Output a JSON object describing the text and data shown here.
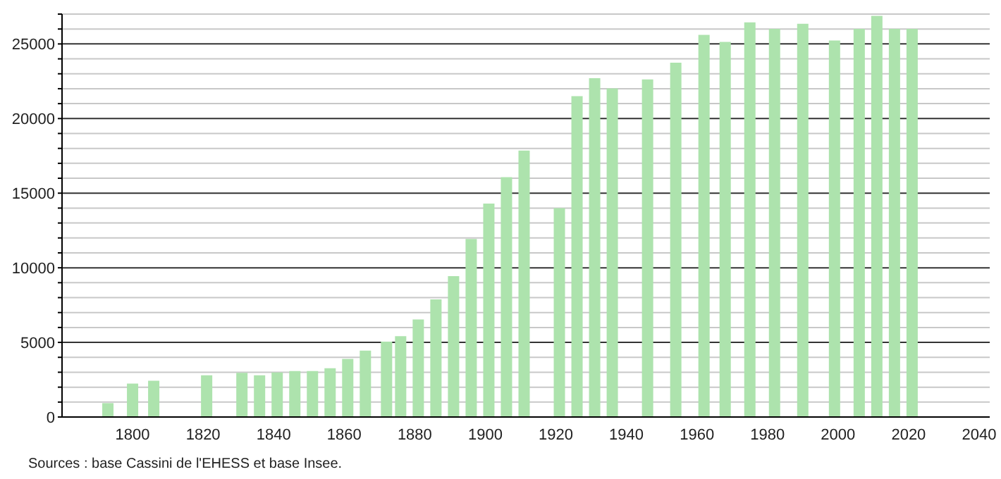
{
  "chart_data": {
    "type": "bar",
    "x": [
      1793,
      1800,
      1806,
      1821,
      1831,
      1836,
      1841,
      1846,
      1851,
      1856,
      1861,
      1866,
      1872,
      1876,
      1881,
      1886,
      1891,
      1896,
      1901,
      1906,
      1911,
      1921,
      1926,
      1931,
      1936,
      1946,
      1954,
      1962,
      1968,
      1975,
      1982,
      1990,
      1999,
      2006,
      2011,
      2016,
      2021
    ],
    "values": [
      930,
      2240,
      2430,
      2800,
      2960,
      2800,
      2990,
      3080,
      3080,
      3270,
      3890,
      4450,
      5050,
      5420,
      6540,
      7880,
      9440,
      11930,
      14300,
      16070,
      17850,
      13990,
      21500,
      22710,
      22020,
      22620,
      23740,
      25610,
      25140,
      26450,
      26010,
      26350,
      25230,
      26010,
      26880,
      26010,
      26010
    ],
    "color": "#ade3ad",
    "xlim": [
      1780,
      2043
    ],
    "xticks": [
      1800,
      1820,
      1840,
      1860,
      1880,
      1900,
      1920,
      1940,
      1960,
      1980,
      2000,
      2020,
      2040
    ],
    "ylim": [
      0,
      27000
    ],
    "yticks": [
      0,
      {
        "value": 1000,
        "label": null
      },
      {
        "value": 2000,
        "label": null
      },
      {
        "value": 3000,
        "label": null
      },
      {
        "value": 4000,
        "label": null
      },
      5000,
      {
        "value": 6000,
        "label": null
      },
      {
        "value": 7000,
        "label": null
      },
      {
        "value": 8000,
        "label": null
      },
      {
        "value": 9000,
        "label": null
      },
      10000,
      {
        "value": 11000,
        "label": null
      },
      {
        "value": 12000,
        "label": null
      },
      {
        "value": 13000,
        "label": null
      },
      {
        "value": 14000,
        "label": null
      },
      15000,
      {
        "value": 16000,
        "label": null
      },
      {
        "value": 17000,
        "label": null
      },
      {
        "value": 18000,
        "label": null
      },
      {
        "value": 19000,
        "label": null
      },
      20000,
      {
        "value": 21000,
        "label": null
      },
      {
        "value": 22000,
        "label": null
      },
      {
        "value": 23000,
        "label": null
      },
      {
        "value": 24000,
        "label": null
      },
      25000,
      {
        "value": 26000,
        "label": null
      },
      {
        "value": 27000,
        "label": null
      }
    ],
    "grid": "y",
    "annotations": [
      "Sources : base Cassini de l'EHESS et base Insee."
    ]
  }
}
